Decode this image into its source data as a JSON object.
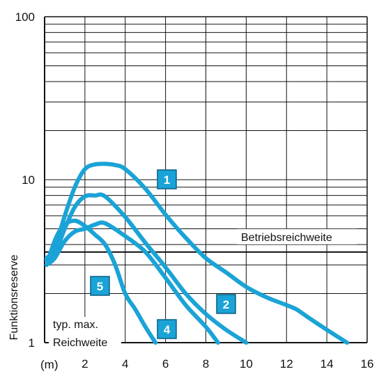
{
  "chart_data": {
    "type": "line",
    "title": "",
    "xlabel": "(m)",
    "ylabel": "Funktionsreserve",
    "x_scale": "linear",
    "y_scale": "log",
    "xlim": [
      0,
      16
    ],
    "ylim": [
      1,
      100
    ],
    "x_ticks": [
      "2",
      "4",
      "6",
      "8",
      "10",
      "12",
      "14",
      "16"
    ],
    "y_ticks": [
      "1",
      "10",
      "100"
    ],
    "grid": true,
    "colors": {
      "curve": "#1aa3d6",
      "badge": "#1aa3d6",
      "badge_border": "#0a5f85",
      "axis": "#111111"
    },
    "threshold": {
      "label": "Betriebsreichweite",
      "y": 3.6
    },
    "annotation": {
      "line1": "typ. max.",
      "line2": "Reichweite"
    },
    "series": [
      {
        "name": "1",
        "x": [
          0.1,
          0.5,
          1.0,
          1.5,
          2.0,
          2.5,
          3.0,
          3.5,
          4.0,
          5.0,
          6.0,
          7.0,
          8.0,
          9.0,
          10.0,
          11.0,
          12.0,
          12.5,
          13.0,
          14.0,
          15.0
        ],
        "y": [
          3.3,
          3.8,
          6.0,
          9.0,
          11.6,
          12.4,
          12.5,
          12.3,
          11.6,
          8.8,
          6.1,
          4.4,
          3.3,
          2.7,
          2.2,
          1.9,
          1.7,
          1.6,
          1.45,
          1.2,
          1.0
        ]
      },
      {
        "name": "2",
        "x": [
          0.1,
          0.5,
          1.0,
          1.5,
          2.0,
          2.5,
          3.0,
          4.0,
          5.0,
          6.0,
          7.0,
          8.0,
          9.0,
          10.0
        ],
        "y": [
          3.2,
          3.5,
          5.0,
          6.8,
          7.9,
          8.0,
          7.9,
          5.9,
          4.1,
          2.9,
          2.0,
          1.5,
          1.2,
          1.0
        ]
      },
      {
        "name": "4",
        "x": [
          0.1,
          0.5,
          1.0,
          1.5,
          2.0,
          2.5,
          3.0,
          4.0,
          5.0,
          6.0,
          7.0,
          8.0,
          8.6
        ],
        "y": [
          3.0,
          3.3,
          4.2,
          4.8,
          5.0,
          5.3,
          5.4,
          4.5,
          3.6,
          2.5,
          1.7,
          1.25,
          1.0
        ]
      },
      {
        "name": "5",
        "x": [
          0.2,
          0.6,
          1.0,
          1.5,
          2.0,
          2.5,
          3.0,
          3.5,
          4.0,
          4.5,
          5.0,
          5.5
        ],
        "y": [
          3.3,
          4.5,
          5.3,
          5.6,
          5.2,
          4.6,
          4.0,
          3.0,
          2.0,
          1.6,
          1.25,
          1.0
        ]
      }
    ],
    "badges": [
      "1",
      "2",
      "4",
      "5"
    ]
  }
}
